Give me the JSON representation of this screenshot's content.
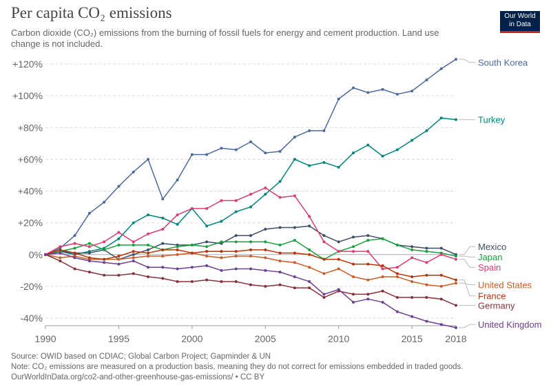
{
  "header": {
    "title": "Per capita CO₂ emissions",
    "subtitle": "Carbon dioxide (CO₂) emissions from the burning of fossil fuels for energy and cement production. Land use change is not included."
  },
  "logo": {
    "line1": "Our World",
    "line2": "in Data",
    "background": "#002147",
    "accent": "#ce261e"
  },
  "footer": {
    "source": "Source: OWID based on CDIAC; Global Carbon Project; Gapminder & UN",
    "note": "Note: CO₂ emissions are measured on a production basis, meaning they do not correct for emissions embedded in traded goods.",
    "url": "OurWorldInData.org/co2-and-other-greenhouse-gas-emissions/ • CC BY"
  },
  "chart_data": {
    "type": "line",
    "x": [
      1990,
      1991,
      1992,
      1993,
      1994,
      1995,
      1996,
      1997,
      1998,
      1999,
      2000,
      2001,
      2002,
      2003,
      2004,
      2005,
      2006,
      2007,
      2008,
      2009,
      2010,
      2011,
      2012,
      2013,
      2014,
      2015,
      2016,
      2017,
      2018
    ],
    "xlim": [
      1990,
      2018
    ],
    "ylim": [
      -45,
      125
    ],
    "x_ticks": [
      1990,
      1995,
      2000,
      2005,
      2010,
      2015,
      2018
    ],
    "y_ticks": [
      -40,
      -20,
      0,
      20,
      40,
      60,
      80,
      100,
      120
    ],
    "y_tick_labels": [
      "-40%",
      "-20%",
      "0%",
      "+20%",
      "+40%",
      "+60%",
      "+80%",
      "+100%",
      "+120%"
    ],
    "grid": "horizontal dashed",
    "legend": "right, labels at line ends",
    "series": [
      {
        "name": "South Korea",
        "color": "#4c6a9c",
        "values": [
          0,
          4,
          12,
          26,
          33,
          43,
          52,
          60,
          35,
          47,
          63,
          63,
          67,
          66,
          71,
          64,
          65,
          74,
          78,
          78,
          98,
          105,
          102,
          104,
          101,
          103,
          110,
          117,
          123
        ]
      },
      {
        "name": "Turkey",
        "color": "#00847e",
        "values": [
          0,
          2,
          0,
          2,
          4,
          10,
          20,
          25,
          23,
          19,
          29,
          18,
          21,
          27,
          30,
          38,
          46,
          60,
          56,
          58,
          55,
          64,
          69,
          62,
          66,
          72,
          78,
          86,
          85
        ]
      },
      {
        "name": "Mexico",
        "color": "#3c4e66",
        "values": [
          0,
          2,
          1,
          1,
          3,
          -3,
          0,
          3,
          7,
          6,
          6,
          8,
          7,
          12,
          12,
          16,
          17,
          17,
          18,
          12,
          8,
          11,
          12,
          10,
          6,
          5,
          4,
          4,
          0
        ]
      },
      {
        "name": "Japan",
        "color": "#18a03b",
        "values": [
          0,
          2,
          4,
          7,
          3,
          6,
          6,
          6,
          3,
          5,
          6,
          5,
          8,
          8,
          8,
          8,
          6,
          9,
          3,
          -3,
          2,
          5,
          9,
          10,
          6,
          3,
          2,
          1,
          -1
        ]
      },
      {
        "name": "Spain",
        "color": "#d73c72",
        "values": [
          0,
          5,
          7,
          5,
          8,
          14,
          8,
          13,
          16,
          25,
          29,
          29,
          34,
          34,
          38,
          42,
          36,
          37,
          24,
          8,
          2,
          2,
          2,
          -9,
          -8,
          -2,
          -5,
          0,
          -3
        ]
      },
      {
        "name": "United States",
        "color": "#ca5b27",
        "values": [
          0,
          -2,
          -1,
          -3,
          -3,
          -3,
          -2,
          -1,
          -1,
          0,
          1,
          -1,
          -2,
          -1,
          -1,
          -2,
          -4,
          -5,
          -8,
          -12,
          -9,
          -14,
          -16,
          -14,
          -14,
          -17,
          -19,
          -20,
          -18
        ]
      },
      {
        "name": "France",
        "color": "#b13507",
        "values": [
          0,
          3,
          1,
          -2,
          -3,
          -1,
          2,
          1,
          3,
          3,
          1,
          2,
          2,
          2,
          3,
          3,
          1,
          1,
          0,
          -3,
          -3,
          -6,
          -6,
          -7,
          -12,
          -14,
          -13,
          -13,
          -16
        ]
      },
      {
        "name": "Germany",
        "color": "#883039",
        "values": [
          0,
          -4,
          -9,
          -11,
          -13,
          -13,
          -12,
          -14,
          -15,
          -17,
          -17,
          -16,
          -17,
          -17,
          -19,
          -20,
          -19,
          -21,
          -21,
          -27,
          -23,
          -25,
          -25,
          -23,
          -27,
          -27,
          -27,
          -28,
          -32
        ]
      },
      {
        "name": "United Kingdom",
        "color": "#6d3e91",
        "values": [
          0,
          1,
          -2,
          -4,
          -5,
          -6,
          -4,
          -8,
          -8,
          -9,
          -8,
          -7,
          -10,
          -9,
          -9,
          -10,
          -11,
          -14,
          -17,
          -25,
          -22,
          -30,
          -28,
          -30,
          -36,
          -39,
          -42,
          -44,
          -46
        ]
      }
    ],
    "label_values": {
      "South Korea": 121,
      "Turkey": 85,
      "Mexico": 5,
      "Japan": -1.5,
      "Spain": -8,
      "United States": -19,
      "France": -26,
      "Germany": -32,
      "United Kingdom": -44
    }
  }
}
